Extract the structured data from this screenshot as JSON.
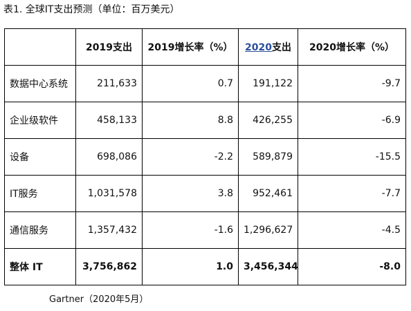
{
  "caption": "表1. 全球IT支出预测（单位：百万美元）",
  "table": {
    "headers": {
      "h0": "",
      "h1": "2019支出",
      "h2": "2019增长率（%）",
      "h3_link": "2020",
      "h3_suffix": "支出",
      "h4": "2020增长率（%）"
    },
    "rows": [
      {
        "label": "数据中心系统",
        "spend_2019": "211,633",
        "growth_2019": "0.7",
        "spend_2020": "191,122",
        "growth_2020": "-9.7"
      },
      {
        "label": "企业级软件",
        "spend_2019": "458,133",
        "growth_2019": "8.8",
        "spend_2020": "426,255",
        "growth_2020": "-6.9"
      },
      {
        "label": "设备",
        "spend_2019": "698,086",
        "growth_2019": "-2.2",
        "spend_2020": "589,879",
        "growth_2020": "-15.5"
      },
      {
        "label": "IT服务",
        "spend_2019": "1,031,578",
        "growth_2019": "3.8",
        "spend_2020": "952,461",
        "growth_2020": "-7.7"
      },
      {
        "label": "通信服务",
        "spend_2019": "1,357,432",
        "growth_2019": "-1.6",
        "spend_2020": "1,296,627",
        "growth_2020": "-4.5"
      }
    ],
    "total": {
      "label": "整体 IT",
      "spend_2019": "3,756,862",
      "growth_2019": "1.0",
      "spend_2020": "3,456,344",
      "growth_2020": "-8.0"
    }
  },
  "source": "Gartner（2020年5月）",
  "colors": {
    "link": "#2b4f9b",
    "border": "#000000",
    "text": "#111111"
  }
}
